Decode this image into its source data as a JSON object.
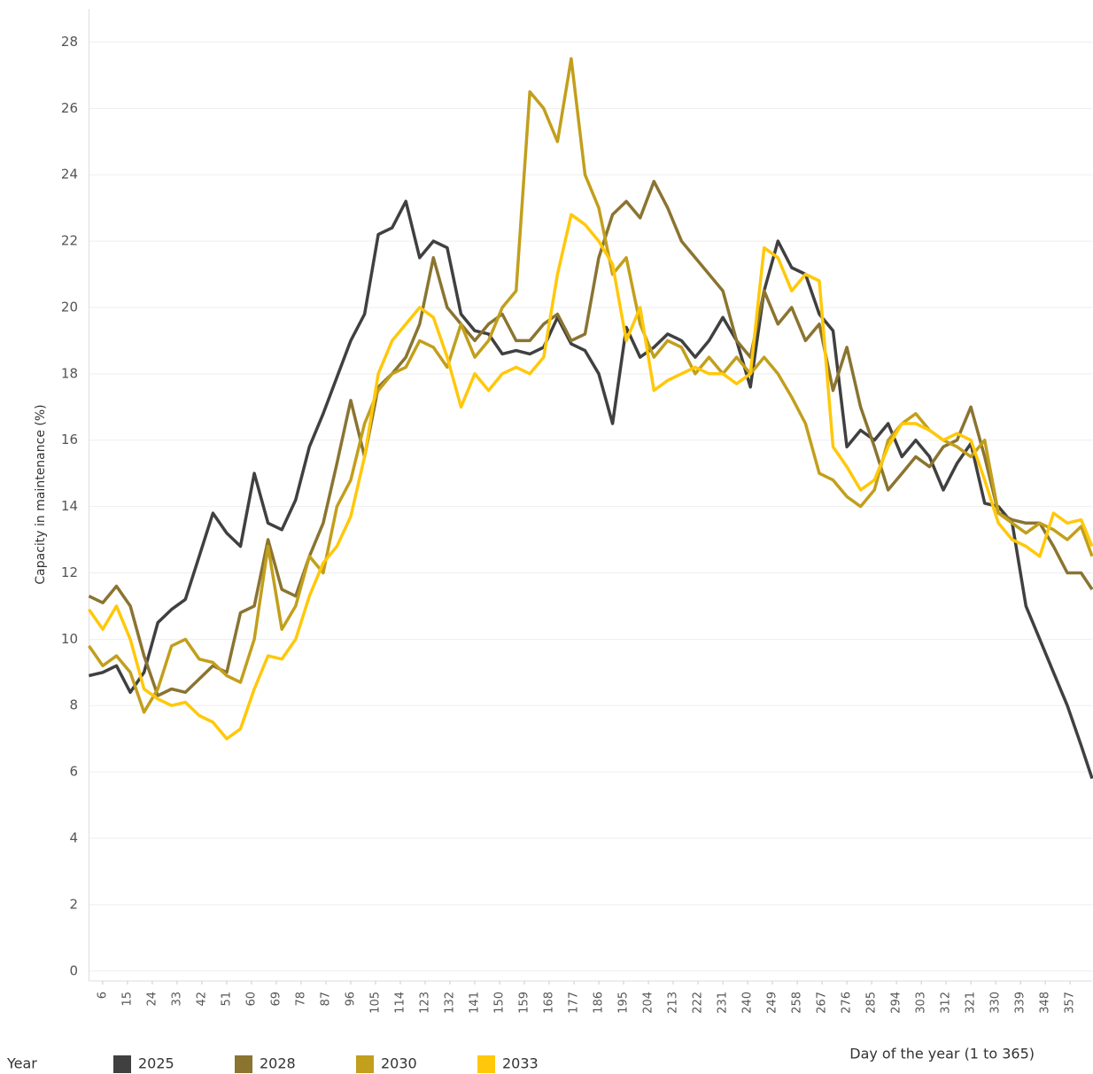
{
  "chart_data": {
    "type": "line",
    "y_label": "Capacity in maintenance (%)",
    "x_label": "Day of the year (1 to 365)",
    "legend_title": "Year",
    "x": [
      1,
      6,
      11,
      16,
      21,
      26,
      31,
      36,
      41,
      46,
      51,
      56,
      61,
      66,
      71,
      76,
      81,
      86,
      91,
      96,
      101,
      106,
      111,
      116,
      121,
      126,
      131,
      136,
      141,
      146,
      151,
      156,
      161,
      166,
      171,
      176,
      181,
      186,
      191,
      196,
      201,
      206,
      211,
      216,
      221,
      226,
      231,
      236,
      241,
      246,
      251,
      256,
      261,
      266,
      271,
      276,
      281,
      286,
      291,
      296,
      301,
      306,
      311,
      316,
      321,
      326,
      331,
      336,
      341,
      346,
      351,
      356,
      361,
      365
    ],
    "series": [
      {
        "name": "2025",
        "color": "#404040",
        "values": [
          8.9,
          9.0,
          9.2,
          8.4,
          9.0,
          10.5,
          10.9,
          11.2,
          12.5,
          13.8,
          13.2,
          12.8,
          15.0,
          13.5,
          13.3,
          14.2,
          15.8,
          16.8,
          17.9,
          19.0,
          19.8,
          22.2,
          22.4,
          23.2,
          21.5,
          22.0,
          21.8,
          19.8,
          19.3,
          19.2,
          18.6,
          18.7,
          18.6,
          18.8,
          19.7,
          18.9,
          18.7,
          18.0,
          16.5,
          19.4,
          18.5,
          18.8,
          19.2,
          19.0,
          18.5,
          19.0,
          19.7,
          19.0,
          17.6,
          20.5,
          22.0,
          21.2,
          21.0,
          19.8,
          19.3,
          15.8,
          16.3,
          16.0,
          16.5,
          15.5,
          16.0,
          15.5,
          14.5,
          15.3,
          15.9,
          14.1,
          14.0,
          13.5,
          11.0,
          10.0,
          9.0,
          8.0,
          6.8,
          5.8
        ]
      },
      {
        "name": "2028",
        "color": "#8a7430",
        "values": [
          11.3,
          11.1,
          11.6,
          11.0,
          9.5,
          8.3,
          8.5,
          8.4,
          8.8,
          9.2,
          9.0,
          10.8,
          11.0,
          13.0,
          11.5,
          11.3,
          12.5,
          13.5,
          15.3,
          17.2,
          15.5,
          17.6,
          18.0,
          18.5,
          19.5,
          21.5,
          20.0,
          19.5,
          19.0,
          19.5,
          19.8,
          19.0,
          19.0,
          19.5,
          19.8,
          19.0,
          19.2,
          21.5,
          22.8,
          23.2,
          22.7,
          23.8,
          23.0,
          22.0,
          21.5,
          21.0,
          20.5,
          19.0,
          18.5,
          20.5,
          19.5,
          20.0,
          19.0,
          19.5,
          17.5,
          18.8,
          17.0,
          15.8,
          14.5,
          15.0,
          15.5,
          15.2,
          15.8,
          16.0,
          17.0,
          15.5,
          13.8,
          13.6,
          13.5,
          13.5,
          12.8,
          12.0,
          12.0,
          11.5
        ]
      },
      {
        "name": "2030",
        "color": "#c29f1c",
        "values": [
          9.8,
          9.2,
          9.5,
          9.0,
          7.8,
          8.5,
          9.8,
          10.0,
          9.4,
          9.3,
          8.9,
          8.7,
          10.0,
          12.8,
          10.3,
          11.0,
          12.5,
          12.0,
          14.0,
          14.8,
          16.5,
          17.5,
          18.0,
          18.2,
          19.0,
          18.8,
          18.2,
          19.5,
          18.5,
          19.0,
          20.0,
          20.5,
          26.5,
          26.0,
          25.0,
          27.5,
          24.0,
          23.0,
          21.0,
          21.5,
          19.5,
          18.5,
          19.0,
          18.8,
          18.0,
          18.5,
          18.0,
          18.5,
          18.0,
          18.5,
          18.0,
          17.3,
          16.5,
          15.0,
          14.8,
          14.3,
          14.0,
          14.5,
          16.0,
          16.5,
          16.8,
          16.3,
          16.0,
          15.8,
          15.5,
          16.0,
          13.8,
          13.5,
          13.2,
          13.5,
          13.3,
          13.0,
          13.4,
          12.5
        ]
      },
      {
        "name": "2033",
        "color": "#ffc80a",
        "values": [
          10.9,
          10.3,
          11.0,
          10.0,
          8.5,
          8.2,
          8.0,
          8.1,
          7.7,
          7.5,
          7.0,
          7.3,
          8.5,
          9.5,
          9.4,
          10.0,
          11.3,
          12.3,
          12.8,
          13.7,
          15.5,
          18.0,
          19.0,
          19.5,
          20.0,
          19.7,
          18.5,
          17.0,
          18.0,
          17.5,
          18.0,
          18.2,
          18.0,
          18.5,
          21.0,
          22.8,
          22.5,
          22.0,
          21.3,
          19.0,
          20.0,
          17.5,
          17.8,
          18.0,
          18.2,
          18.0,
          18.0,
          17.7,
          18.0,
          21.8,
          21.5,
          20.5,
          21.0,
          20.8,
          15.8,
          15.2,
          14.5,
          14.8,
          15.8,
          16.5,
          16.5,
          16.3,
          16.0,
          16.2,
          16.0,
          14.8,
          13.5,
          13.0,
          12.8,
          12.5,
          13.8,
          13.5,
          13.6,
          12.8
        ]
      }
    ],
    "xlim": [
      1,
      365
    ],
    "xticks": [
      6,
      15,
      24,
      33,
      42,
      51,
      60,
      69,
      78,
      87,
      96,
      105,
      114,
      123,
      132,
      141,
      150,
      159,
      168,
      177,
      186,
      195,
      204,
      213,
      222,
      231,
      240,
      249,
      258,
      267,
      276,
      285,
      294,
      303,
      312,
      321,
      330,
      339,
      348,
      357
    ],
    "ylim": [
      -0.3,
      29
    ],
    "yticks": [
      0,
      2,
      4,
      6,
      8,
      10,
      12,
      14,
      16,
      18,
      20,
      22,
      24,
      26,
      28
    ],
    "grid": true
  }
}
